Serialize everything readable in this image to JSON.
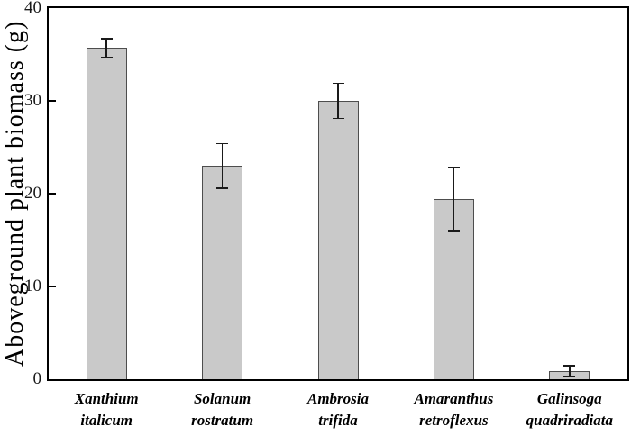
{
  "chart_data": {
    "type": "bar",
    "title": "",
    "categories": [
      "Xanthium italicum",
      "Solanum rostratum",
      "Ambrosia trifida",
      "Amaranthus retroflexus",
      "Galinsoga quadriradiata"
    ],
    "values": [
      35.7,
      23.0,
      30.0,
      19.4,
      0.9
    ],
    "errors": [
      1.0,
      2.4,
      1.9,
      3.4,
      0.55
    ],
    "xlabel": "",
    "ylabel": "Aboveground plant biomass (g)",
    "ylim": [
      0,
      40
    ],
    "yticks": [
      0,
      10,
      20,
      30,
      40
    ],
    "grid": false,
    "legend": null,
    "colors": {
      "bar_fill": "#c9c9c9",
      "bar_border": "#4d4d4d",
      "error_bar": "#1a1a1a",
      "frame": "#000000",
      "background": "#ffffff"
    }
  }
}
